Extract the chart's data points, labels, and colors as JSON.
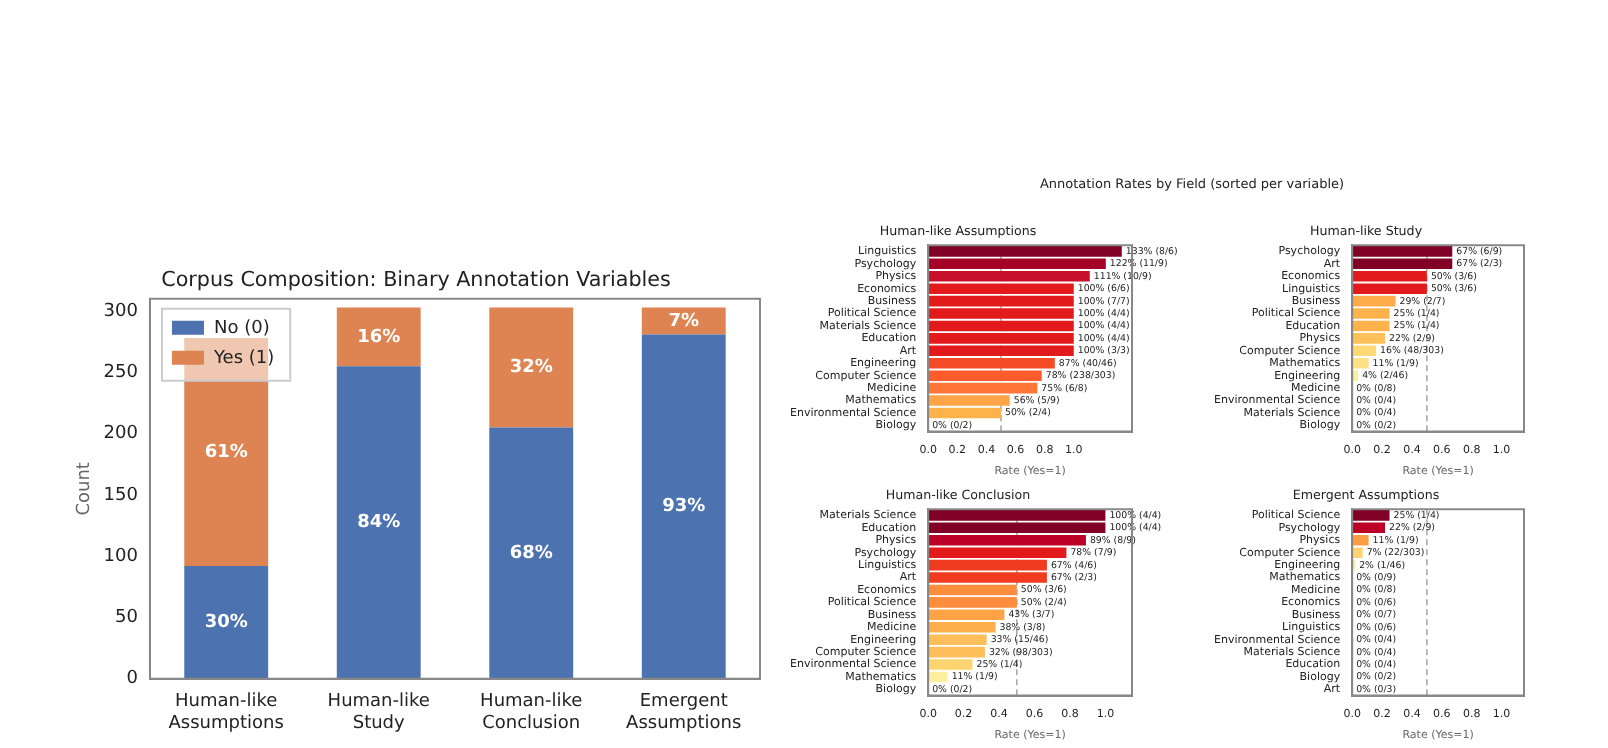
{
  "chart_data": [
    {
      "type": "bar",
      "title": "Corpus Composition: Binary Annotation Variables",
      "categories": [
        "Human-like Assumptions",
        "Human-like Study",
        "Human-like Conclusion",
        "Emergent Assumptions"
      ],
      "stacked": true,
      "ylabel": "Count",
      "ylim": [
        0,
        310
      ],
      "yticks": [
        0,
        50,
        100,
        150,
        200,
        250,
        300
      ],
      "grid": false,
      "legend": "top left",
      "series": [
        {
          "name": "No (0)",
          "color": "#4c72b0",
          "values": [
            92,
            255,
            205,
            281
          ]
        },
        {
          "name": "Yes (1)",
          "color": "#dd8452",
          "values": [
            186,
            48,
            98,
            22
          ]
        }
      ],
      "annotations": [
        "30%",
        "84%",
        "68%",
        "93%",
        "61%",
        "16%",
        "32%",
        "7%"
      ]
    },
    {
      "type": "bar",
      "orientation": "horizontal",
      "title": "Human-like Assumptions",
      "annotations": [
        "Annotation Rates by Field (sorted per variable)"
      ],
      "xlabel": "Rate (Yes=1)",
      "xlim": [
        0,
        1.4
      ],
      "xticks": [
        {
          "value": 0,
          "label": "0.0"
        },
        {
          "value": 0.2,
          "label": "0.2"
        },
        {
          "value": 0.4,
          "label": "0.4"
        },
        {
          "value": 0.6,
          "label": "0.6"
        },
        {
          "value": 0.8,
          "label": "0.8"
        },
        {
          "value": 1,
          "label": "1.0"
        }
      ],
      "grid": false,
      "ref_lines": [
        {
          "axis": "x",
          "value": 0.5,
          "color": "#aaaaaa",
          "line_style": "dashed"
        }
      ],
      "categories": [
        "Linguistics",
        "Psychology",
        "Physics",
        "Economics",
        "Business",
        "Political Science",
        "Materials Science",
        "Education",
        "Art",
        "Engineering",
        "Computer Science",
        "Medicine",
        "Mathematics",
        "Environmental Science",
        "Biology"
      ],
      "values": [
        1.33,
        1.22,
        1.11,
        1,
        1,
        1,
        1,
        1,
        1,
        0.87,
        0.78,
        0.75,
        0.56,
        0.5,
        0
      ],
      "colors": [
        "#800026",
        "#a50026",
        "#c7102a",
        "#e31a1c",
        "#e31a1c",
        "#e31a1c",
        "#e31a1c",
        "#e31a1c",
        "#e31a1c",
        "#f44a26",
        "#fc5b2c",
        "#fd7636",
        "#fea446",
        "#feb24c",
        "#ffffcc"
      ],
      "value_labels": [
        "133% (8/6)",
        "122% (11/9)",
        "111% (10/9)",
        "100% (6/6)",
        "100% (7/7)",
        "100% (4/4)",
        "100% (4/4)",
        "100% (4/4)",
        "100% (3/3)",
        "87% (40/46)",
        "78% (238/303)",
        "75% (6/8)",
        "56% (5/9)",
        "50% (2/4)",
        "0% (0/2)"
      ]
    },
    {
      "type": "bar",
      "orientation": "horizontal",
      "title": "Human-like Study",
      "xlabel": "Rate (Yes=1)",
      "xlim": [
        0,
        1.15
      ],
      "xticks": [
        {
          "value": 0,
          "label": "0.0"
        },
        {
          "value": 0.2,
          "label": "0.2"
        },
        {
          "value": 0.4,
          "label": "0.4"
        },
        {
          "value": 0.6,
          "label": "0.6"
        },
        {
          "value": 0.8,
          "label": "0.8"
        },
        {
          "value": 1,
          "label": "1.0"
        }
      ],
      "grid": false,
      "ref_lines": [
        {
          "axis": "x",
          "value": 0.5,
          "color": "#aaaaaa",
          "line_style": "dashed"
        }
      ],
      "categories": [
        "Psychology",
        "Art",
        "Economics",
        "Linguistics",
        "Business",
        "Political Science",
        "Education",
        "Physics",
        "Computer Science",
        "Mathematics",
        "Engineering",
        "Medicine",
        "Environmental Science",
        "Materials Science",
        "Biology"
      ],
      "values": [
        0.67,
        0.67,
        0.5,
        0.5,
        0.29,
        0.25,
        0.25,
        0.22,
        0.16,
        0.11,
        0.04,
        0,
        0,
        0,
        0
      ],
      "colors": [
        "#800026",
        "#800026",
        "#e31a1c",
        "#e31a1c",
        "#feab49",
        "#feb24c",
        "#feb24c",
        "#fec05a",
        "#fed976",
        "#fee187",
        "#ffeda0",
        "#ffffcc",
        "#ffffcc",
        "#ffffcc",
        "#ffffcc"
      ],
      "value_labels": [
        "67% (6/9)",
        "67% (2/3)",
        "50% (3/6)",
        "50% (3/6)",
        "29% (2/7)",
        "25% (1/4)",
        "25% (1/4)",
        "22% (2/9)",
        "16% (48/303)",
        "11% (1/9)",
        "4% (2/46)",
        "0% (0/8)",
        "0% (0/4)",
        "0% (0/4)",
        "0% (0/2)"
      ]
    },
    {
      "type": "bar",
      "orientation": "horizontal",
      "title": "Human-like Conclusion",
      "xlabel": "Rate (Yes=1)",
      "xlim": [
        0,
        1.15
      ],
      "xticks": [
        {
          "value": 0,
          "label": "0.0"
        },
        {
          "value": 0.2,
          "label": "0.2"
        },
        {
          "value": 0.4,
          "label": "0.4"
        },
        {
          "value": 0.6,
          "label": "0.6"
        },
        {
          "value": 0.8,
          "label": "0.8"
        },
        {
          "value": 1,
          "label": "1.0"
        }
      ],
      "grid": false,
      "ref_lines": [
        {
          "axis": "x",
          "value": 0.5,
          "color": "#aaaaaa",
          "line_style": "dashed"
        }
      ],
      "categories": [
        "Materials Science",
        "Education",
        "Physics",
        "Psychology",
        "Linguistics",
        "Art",
        "Economics",
        "Political Science",
        "Business",
        "Medicine",
        "Engineering",
        "Computer Science",
        "Environmental Science",
        "Mathematics",
        "Biology"
      ],
      "values": [
        1,
        1,
        0.89,
        0.78,
        0.67,
        0.67,
        0.5,
        0.5,
        0.43,
        0.38,
        0.33,
        0.32,
        0.25,
        0.11,
        0
      ],
      "colors": [
        "#800026",
        "#800026",
        "#bd0026",
        "#e31a1c",
        "#f03b20",
        "#f03b20",
        "#fd8d3c",
        "#fd8d3c",
        "#fea446",
        "#feae4a",
        "#febf5a",
        "#febf5a",
        "#fed470",
        "#ffeda0",
        "#ffffcc"
      ],
      "value_labels": [
        "100% (4/4)",
        "100% (4/4)",
        "89% (8/9)",
        "78% (7/9)",
        "67% (4/6)",
        "67% (2/3)",
        "50% (3/6)",
        "50% (2/4)",
        "43% (3/7)",
        "38% (3/8)",
        "33% (15/46)",
        "32% (98/303)",
        "25% (1/4)",
        "11% (1/9)",
        "0% (0/2)"
      ]
    },
    {
      "type": "bar",
      "orientation": "horizontal",
      "title": "Emergent Assumptions",
      "xlabel": "Rate (Yes=1)",
      "xlim": [
        0,
        1.15
      ],
      "xticks": [
        {
          "value": 0,
          "label": "0.0"
        },
        {
          "value": 0.2,
          "label": "0.2"
        },
        {
          "value": 0.4,
          "label": "0.4"
        },
        {
          "value": 0.6,
          "label": "0.6"
        },
        {
          "value": 0.8,
          "label": "0.8"
        },
        {
          "value": 1,
          "label": "1.0"
        }
      ],
      "grid": false,
      "ref_lines": [
        {
          "axis": "x",
          "value": 0.5,
          "color": "#aaaaaa",
          "line_style": "dashed"
        }
      ],
      "categories": [
        "Political Science",
        "Psychology",
        "Physics",
        "Computer Science",
        "Engineering",
        "Mathematics",
        "Medicine",
        "Economics",
        "Business",
        "Linguistics",
        "Environmental Science",
        "Materials Science",
        "Education",
        "Biology",
        "Art"
      ],
      "values": [
        0.25,
        0.22,
        0.11,
        0.07,
        0.02,
        0,
        0,
        0,
        0,
        0,
        0,
        0,
        0,
        0,
        0
      ],
      "colors": [
        "#800026",
        "#bd0026",
        "#fd9d43",
        "#fed470",
        "#ffeda0",
        "#ffffcc",
        "#ffffcc",
        "#ffffcc",
        "#ffffcc",
        "#ffffcc",
        "#ffffcc",
        "#ffffcc",
        "#ffffcc",
        "#ffffcc",
        "#ffffcc"
      ],
      "value_labels": [
        "25% (1/4)",
        "22% (2/9)",
        "11% (1/9)",
        "7% (22/303)",
        "2% (1/46)",
        "0% (0/9)",
        "0% (0/8)",
        "0% (0/6)",
        "0% (0/7)",
        "0% (0/6)",
        "0% (0/4)",
        "0% (0/4)",
        "0% (0/4)",
        "0% (0/2)",
        "0% (0/3)"
      ]
    }
  ]
}
